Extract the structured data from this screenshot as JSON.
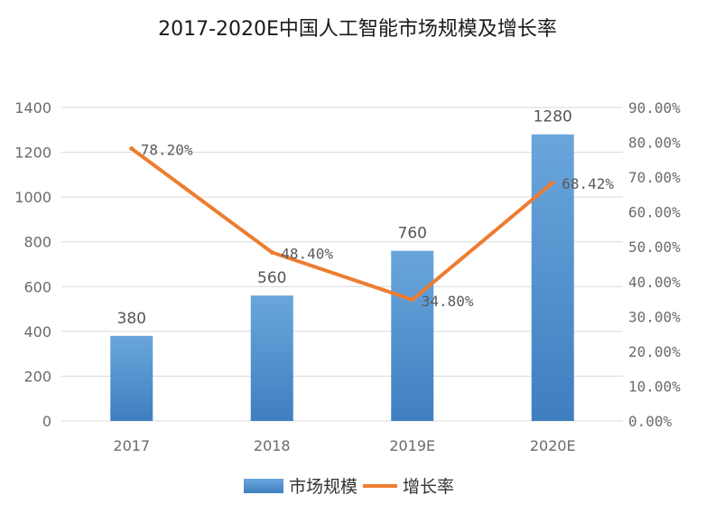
{
  "chart_data": {
    "type": "bar",
    "title": "2017-2020E中国人工智能市场规模及增长率",
    "categories": [
      "2017",
      "2018",
      "2019E",
      "2020E"
    ],
    "series": [
      {
        "name": "市场规模",
        "type": "bar",
        "axis": "left",
        "values": [
          380,
          560,
          760,
          1280
        ],
        "labels": [
          "380",
          "560",
          "760",
          "1280"
        ]
      },
      {
        "name": "增长率",
        "type": "line",
        "axis": "right",
        "values": [
          78.2,
          48.4,
          34.8,
          68.42
        ],
        "labels": [
          "78.20%",
          "48.40%",
          "34.80%",
          "68.42%"
        ]
      }
    ],
    "ylim": [
      0,
      1400
    ],
    "yticks": [
      "0",
      "200",
      "400",
      "600",
      "800",
      "1000",
      "1200",
      "1400"
    ],
    "y2lim": [
      0,
      90
    ],
    "y2ticks": [
      "0.00%",
      "10.00%",
      "20.00%",
      "30.00%",
      "40.00%",
      "50.00%",
      "60.00%",
      "70.00%",
      "80.00%",
      "90.00%"
    ],
    "grid": true,
    "legend_position": "bottom",
    "colors": {
      "bar": "#5b9bd5",
      "bar_dark": "#3f7fc0",
      "line": "#ed7d31"
    }
  }
}
